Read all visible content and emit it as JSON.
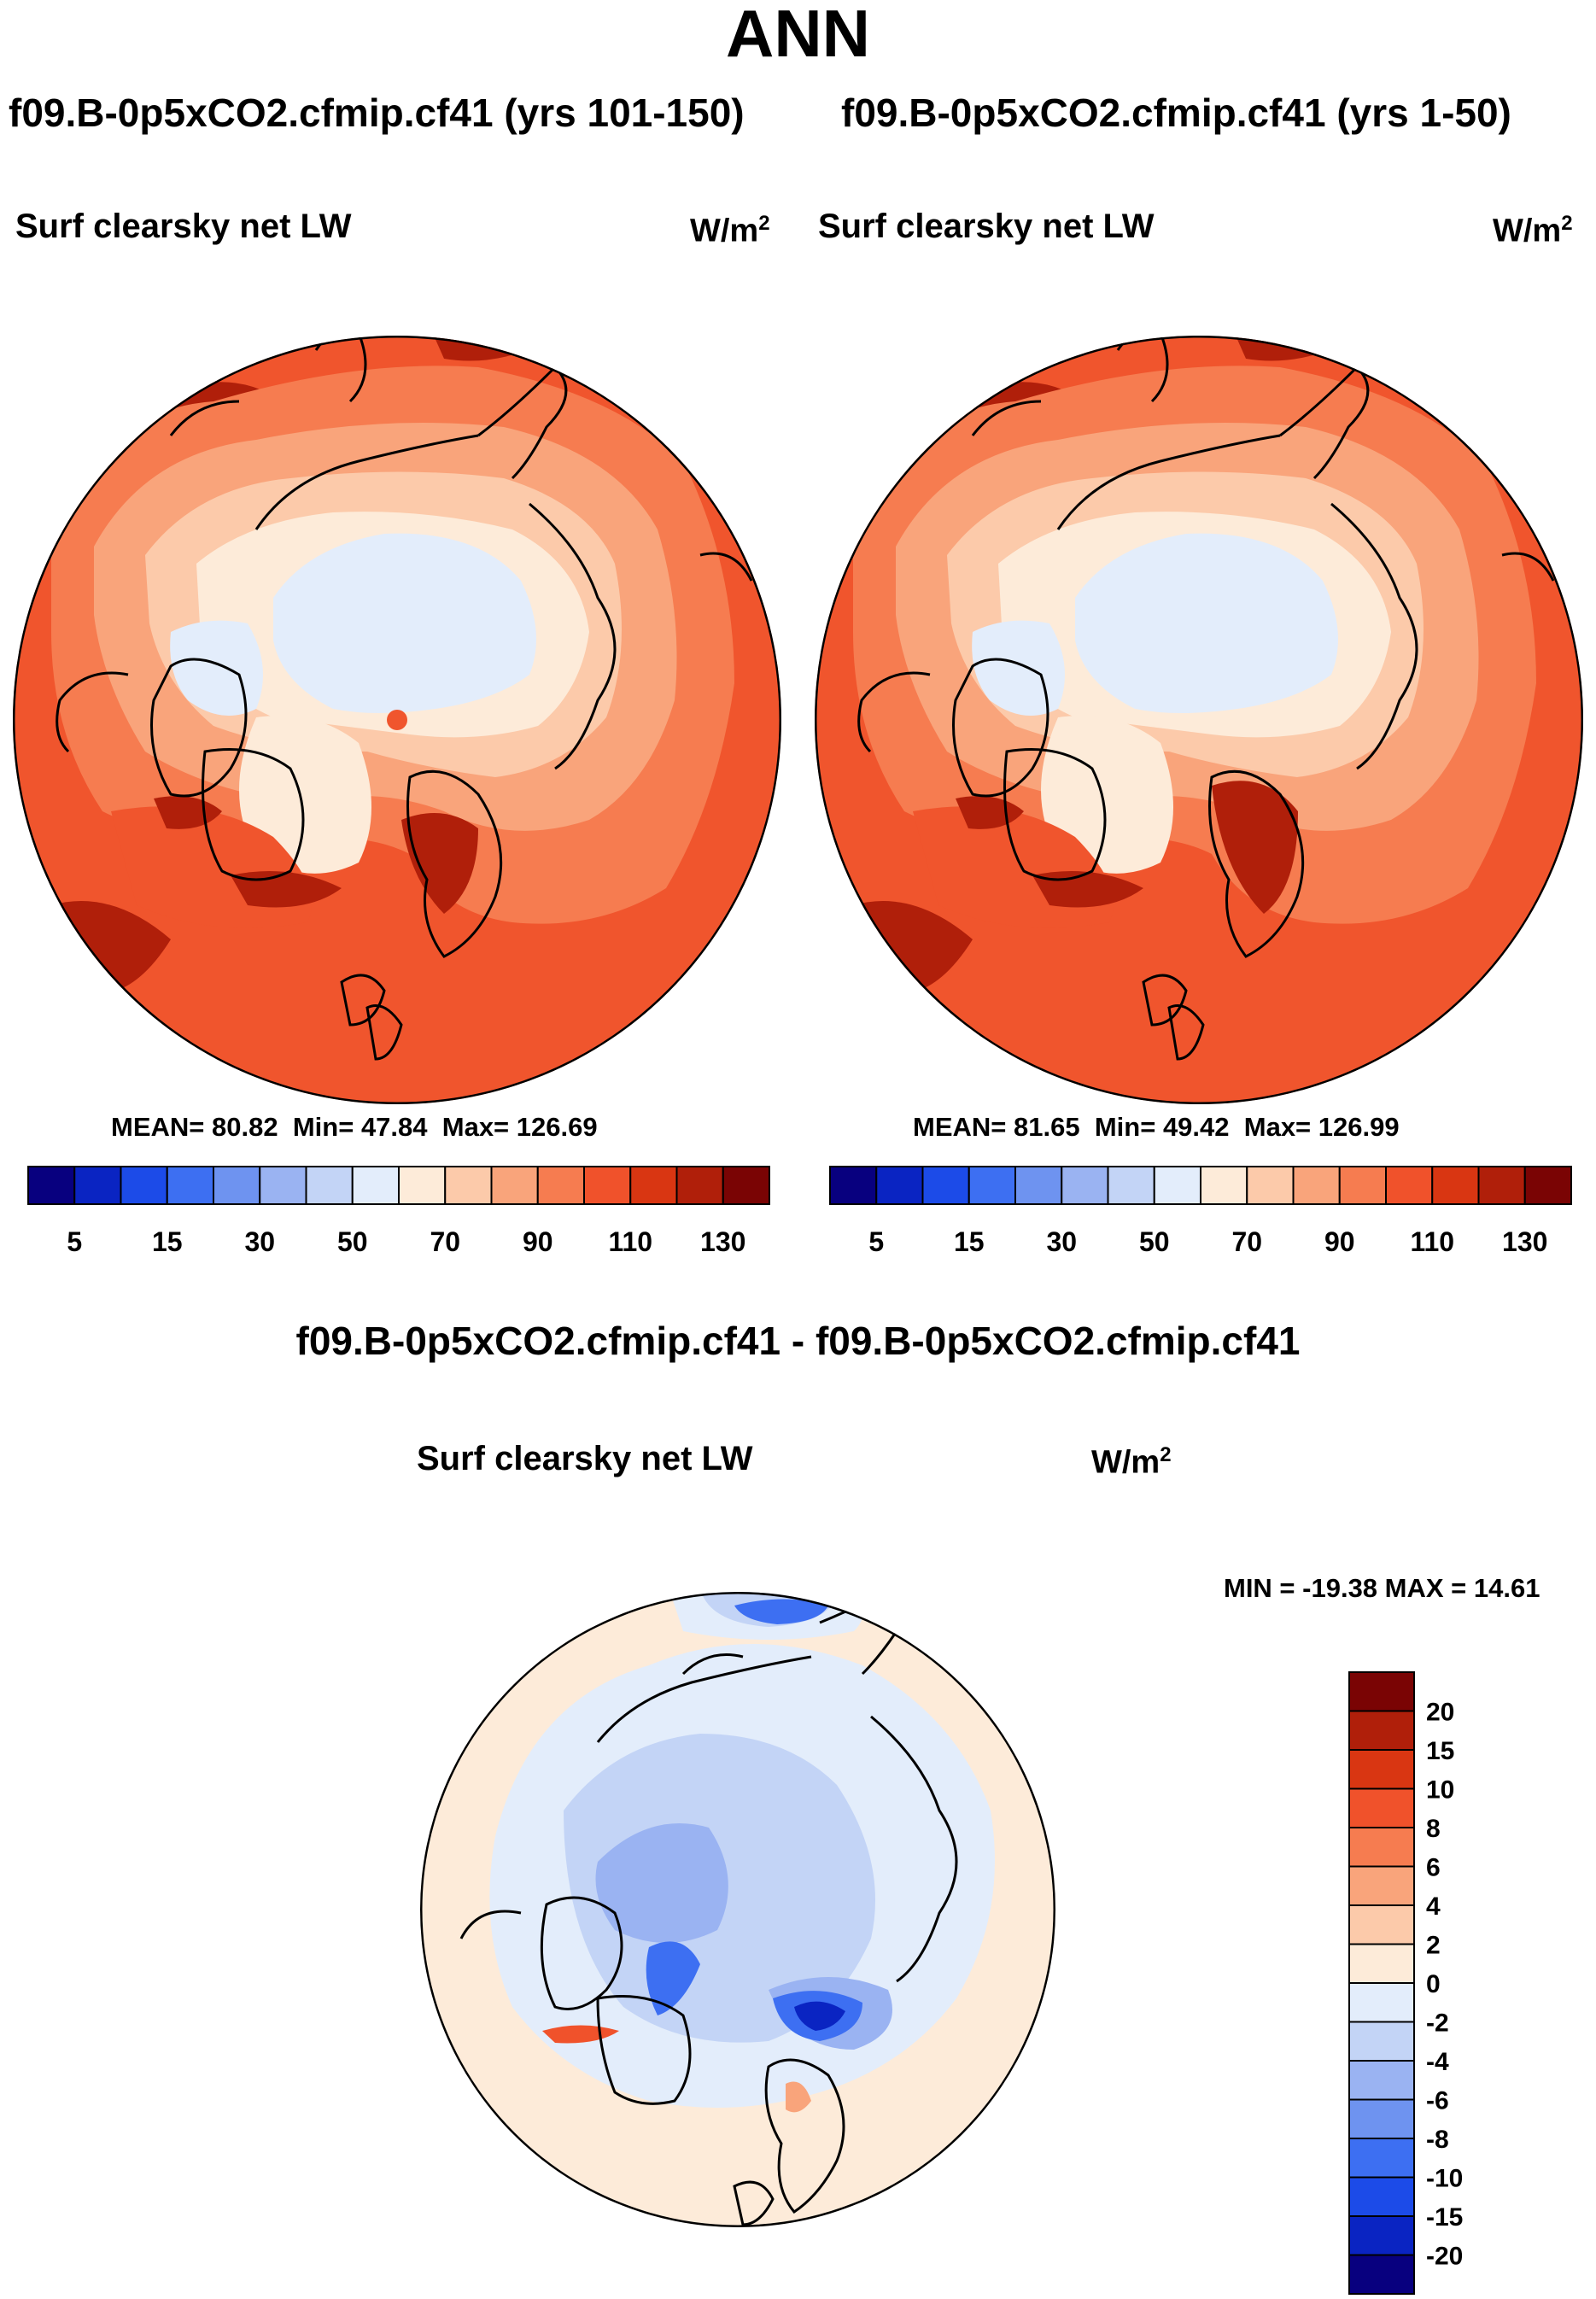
{
  "title": "ANN",
  "panels": [
    {
      "case_title": "f09.B-0p5xCO2.cfmip.cf41 (yrs 101-150)",
      "variable": "Surf clearsky net LW",
      "units": "W/m",
      "units_exp": "2",
      "stats": {
        "mean_label": "MEAN=",
        "mean": "80.82",
        "min_label": "Min=",
        "min": "47.84",
        "max_label": "Max=",
        "max": "126.69"
      }
    },
    {
      "case_title": "f09.B-0p5xCO2.cfmip.cf41 (yrs 1-50)",
      "variable": "Surf clearsky net LW",
      "units": "W/m",
      "units_exp": "2",
      "stats": {
        "mean_label": "MEAN=",
        "mean": "81.65",
        "min_label": "Min=",
        "min": "49.42",
        "max_label": "Max=",
        "max": "126.99"
      }
    }
  ],
  "diff_panel": {
    "case_title": "f09.B-0p5xCO2.cfmip.cf41 - f09.B-0p5xCO2.cfmip.cf41",
    "variable": "Surf clearsky net LW",
    "units": "W/m",
    "units_exp": "2",
    "minmax": "MIN = -19.38 MAX =  14.61"
  },
  "colorbar_abs": {
    "colors": [
      "#08007f",
      "#0a24c2",
      "#1c4be8",
      "#3d6ff2",
      "#6e93f0",
      "#9ab3f2",
      "#c3d4f6",
      "#e3edfb",
      "#fdebd9",
      "#fccaaa",
      "#f9a47b",
      "#f67c50",
      "#f0522b",
      "#d93612",
      "#b01f0a",
      "#7a0404"
    ],
    "labels": [
      "5",
      "15",
      "30",
      "50",
      "70",
      "90",
      "110",
      "130"
    ]
  },
  "colorbar_diff": {
    "colors": [
      "#7a0404",
      "#b01f0a",
      "#d93612",
      "#f0522b",
      "#f67c50",
      "#f9a47b",
      "#fccaaa",
      "#fdebd9",
      "#e3edfb",
      "#c3d4f6",
      "#9ab3f2",
      "#6e93f0",
      "#3d6ff2",
      "#1c4be8",
      "#0a24c2",
      "#08007f"
    ],
    "labels": [
      "20",
      "15",
      "10",
      "8",
      "6",
      "4",
      "2",
      "0",
      "-2",
      "-4",
      "-6",
      "-8",
      "-10",
      "-15",
      "-20"
    ]
  },
  "map_colors": {
    "outer": "#f0552d",
    "mid": "#f67c50",
    "ring": "#f9a47b",
    "inner": "#fccaaa",
    "pale": "#fdebd9",
    "ice": "#e3edfb",
    "dark": "#b01f0a",
    "diff_bg": "#fdebd9",
    "diff_l1": "#e3edfb",
    "diff_l2": "#c3d4f6",
    "diff_l3": "#9ab3f2",
    "diff_l4": "#3d6ff2",
    "diff_l5": "#0a24c2",
    "diff_red": "#f0522b"
  }
}
